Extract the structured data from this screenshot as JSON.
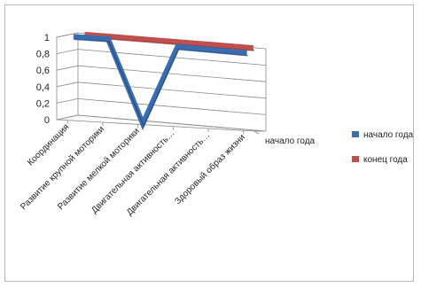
{
  "chart_data": {
    "type": "line",
    "subtype": "3d-line",
    "categories": [
      "Координация",
      "Развитие крупной моторики",
      "Развитие мелкой моторики",
      "Двигательная активность…",
      "Двигательная активность…",
      "Здоровый образ жизни"
    ],
    "series": [
      {
        "name": "начало года",
        "values": [
          1,
          1,
          0,
          0.96,
          0.95,
          0.94
        ],
        "color": "#3a6cb0"
      },
      {
        "name": "конец года",
        "values": [
          1,
          1,
          1,
          1,
          1,
          1
        ],
        "color": "#c0504d"
      }
    ],
    "depth_labels": [
      "начало года"
    ],
    "yticks": [
      0,
      0.2,
      0.4,
      0.6,
      0.8,
      1
    ],
    "ytick_labels": [
      "0",
      "0,2",
      "0,4",
      "0,6",
      "0,8",
      "1"
    ],
    "ylim": [
      0,
      1
    ],
    "grid": true,
    "legend": "right",
    "title": "",
    "xlabel": "",
    "ylabel": ""
  }
}
